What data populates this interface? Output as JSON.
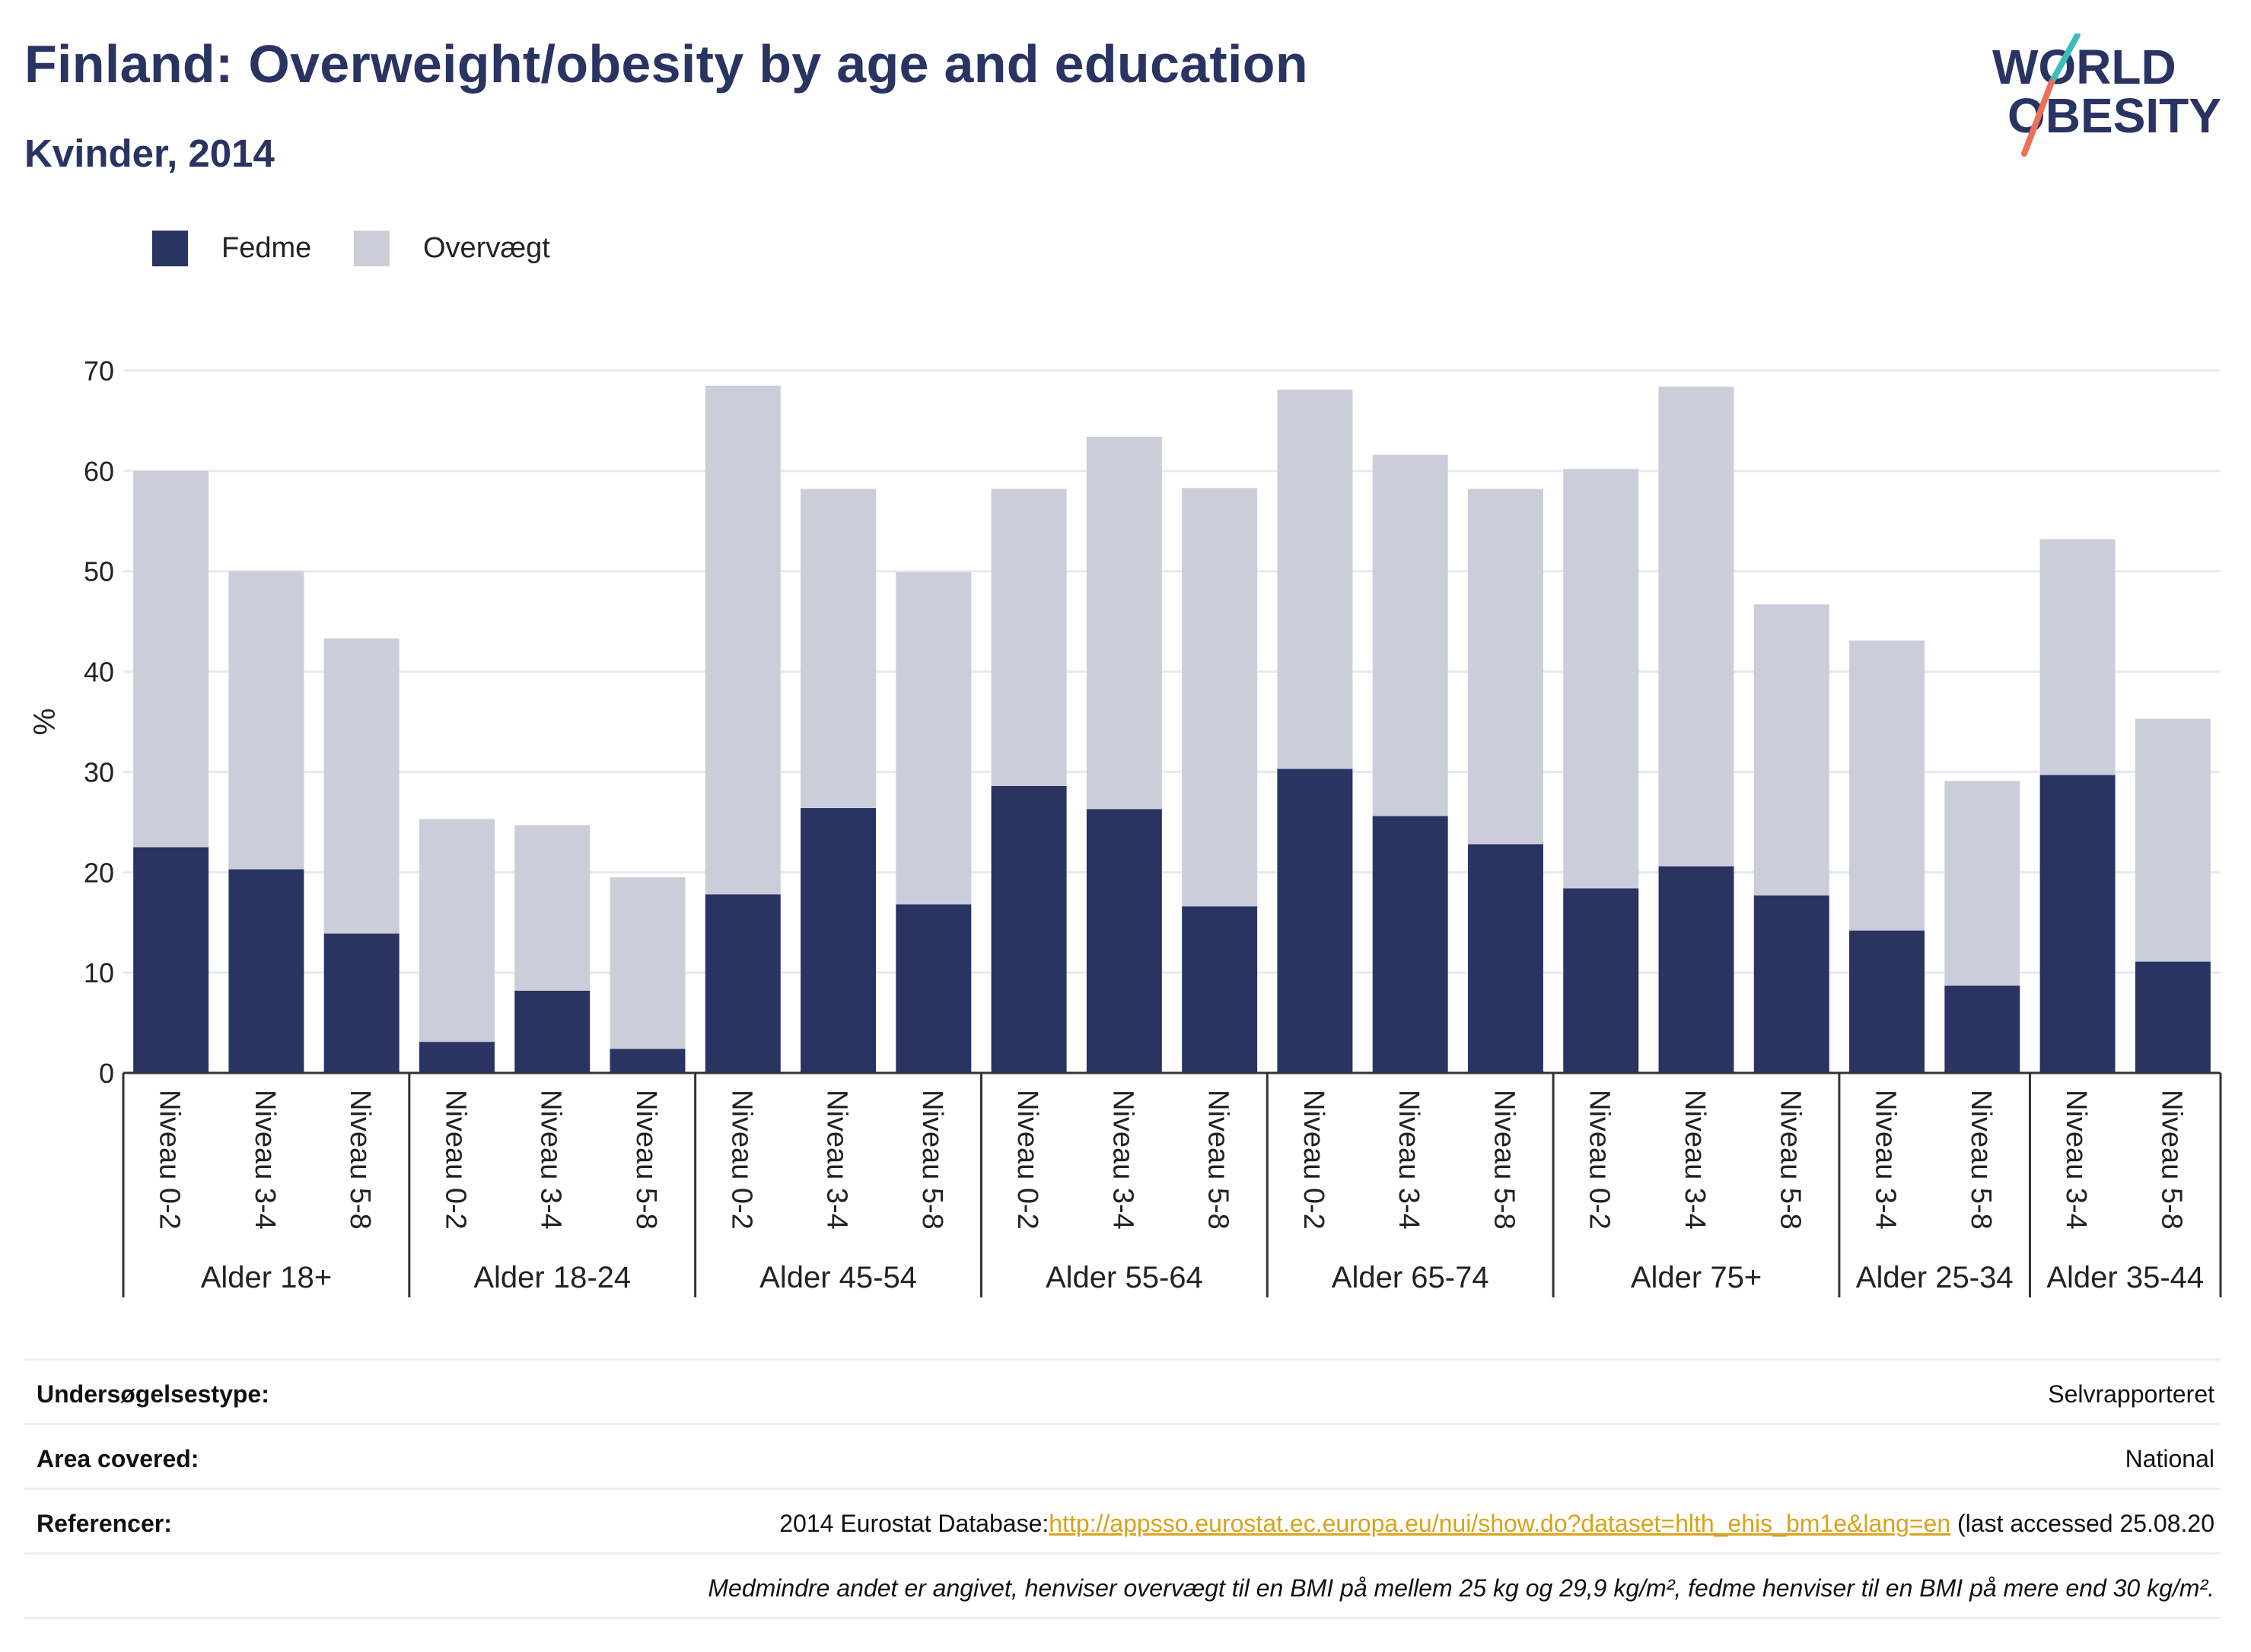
{
  "header": {
    "title": "Finland: Overweight/obesity by age and education",
    "subtitle": "Kvinder, 2014"
  },
  "logo": {
    "line1": "WORLD",
    "line2": "OBESITY"
  },
  "colors": {
    "fedme": "#2a3462",
    "overvaegt": "#cbcdd9",
    "title": "#2a3462",
    "link": "#d9a21b",
    "logo_teal": "#3bbdb9",
    "logo_coral": "#ec6f5a"
  },
  "chart_data": {
    "type": "bar",
    "stacked": true,
    "ylabel": "%",
    "ylim": [
      0,
      70
    ],
    "yticks": [
      "0",
      "10",
      "20",
      "30",
      "40",
      "50",
      "60",
      "70"
    ],
    "grid": true,
    "legend_position": "top-left",
    "categories": [
      "Niveau 0-2",
      "Niveau 3-4",
      "Niveau 5-8",
      "Niveau 0-2",
      "Niveau 3-4",
      "Niveau 5-8",
      "Niveau 0-2",
      "Niveau 3-4",
      "Niveau 5-8",
      "Niveau 0-2",
      "Niveau 3-4",
      "Niveau 5-8",
      "Niveau 0-2",
      "Niveau 3-4",
      "Niveau 5-8",
      "Niveau 0-2",
      "Niveau 3-4",
      "Niveau 5-8",
      "Niveau 3-4",
      "Niveau 5-8",
      "Niveau 3-4",
      "Niveau 5-8"
    ],
    "groups": [
      {
        "label": "Alder 18+",
        "count": 3
      },
      {
        "label": "Alder 18-24",
        "count": 3
      },
      {
        "label": "Alder 45-54",
        "count": 3
      },
      {
        "label": "Alder 55-64",
        "count": 3
      },
      {
        "label": "Alder 65-74",
        "count": 3
      },
      {
        "label": "Alder 75+",
        "count": 3
      },
      {
        "label": "Alder 25-34",
        "count": 2
      },
      {
        "label": "Alder 35-44",
        "count": 2
      }
    ],
    "series": [
      {
        "name": "Fedme",
        "values": [
          22.5,
          20.3,
          13.9,
          3.1,
          8.2,
          2.4,
          17.8,
          26.4,
          16.8,
          28.6,
          26.3,
          16.6,
          30.3,
          25.6,
          22.8,
          18.4,
          20.6,
          17.7,
          14.2,
          8.7,
          29.7,
          11.1
        ]
      },
      {
        "name": "Overvægt",
        "values": [
          37.5,
          29.7,
          29.4,
          22.2,
          16.5,
          17.1,
          50.7,
          31.8,
          33.1,
          29.6,
          37.1,
          41.7,
          37.8,
          36.0,
          35.4,
          41.8,
          47.8,
          29.0,
          28.9,
          20.4,
          23.5,
          24.2
        ]
      }
    ]
  },
  "info": {
    "survey_type_label": "Undersøgelsestype:",
    "survey_type_value": "Selvrapporteret",
    "area_label": "Area covered:",
    "area_value": "National",
    "references_label": "Referencer:",
    "references_prefix": "2014 Eurostat Database:",
    "references_link": "http://appsso.eurostat.ec.europa.eu/nui/show.do?dataset=hlth_ehis_bm1e&lang=en",
    "references_suffix": " (last accessed 25.08.20",
    "note": "Medmindre andet er angivet, henviser overvægt til en BMI på mellem 25 kg og 29,9 kg/m², fedme henviser til en BMI på mere end 30 kg/m²."
  }
}
